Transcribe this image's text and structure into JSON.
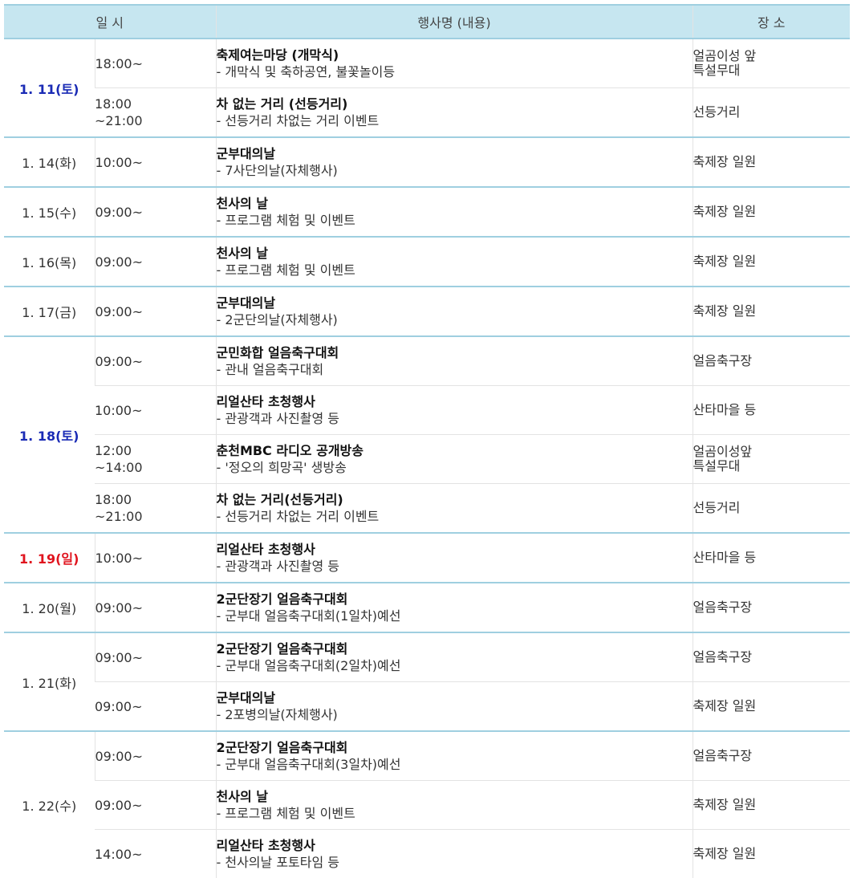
{
  "header": {
    "date_time": "일 시",
    "event": "행사명 (내용)",
    "place": "장 소"
  },
  "groups": [
    {
      "date": "1. 11(토)",
      "day_type": "sat",
      "items": [
        {
          "time": "18:00~",
          "title": "축제여는마당 (개막식)",
          "desc": "- 개막식 및 축하공연, 불꽃놀이등",
          "place": "얼곰이성 앞\n특설무대"
        },
        {
          "time": "18:00\n~21:00",
          "title": "차 없는 거리 (선등거리)",
          "desc": "- 선등거리 차없는 거리 이벤트",
          "place": "선등거리"
        }
      ]
    },
    {
      "date": "1. 14(화)",
      "day_type": "weekday",
      "items": [
        {
          "time": "10:00~",
          "title": "군부대의날",
          "desc": "- 7사단의날(자체행사)",
          "place": "축제장 일원"
        }
      ]
    },
    {
      "date": "1. 15(수)",
      "day_type": "weekday",
      "items": [
        {
          "time": "09:00~",
          "title": "천사의 날",
          "desc": "- 프로그램 체험 및 이벤트",
          "place": "축제장 일원"
        }
      ]
    },
    {
      "date": "1. 16(목)",
      "day_type": "weekday",
      "items": [
        {
          "time": "09:00~",
          "title": "천사의 날",
          "desc": "- 프로그램 체험 및 이벤트",
          "place": "축제장 일원"
        }
      ]
    },
    {
      "date": "1. 17(금)",
      "day_type": "weekday",
      "items": [
        {
          "time": "09:00~",
          "title": "군부대의날",
          "desc": "- 2군단의날(자체행사)",
          "place": "축제장 일원"
        }
      ]
    },
    {
      "date": "1. 18(토)",
      "day_type": "sat",
      "items": [
        {
          "time": "09:00~",
          "title": "군민화합 얼음축구대회",
          "desc": "- 관내 얼음축구대회",
          "place": "얼음축구장"
        },
        {
          "time": "10:00~",
          "title": "리얼산타 초청행사",
          "desc": "- 관광객과 사진촬영 등",
          "place": "산타마을 등"
        },
        {
          "time": "12:00\n~14:00",
          "title": "춘천MBC 라디오 공개방송",
          "desc": "- '정오의 희망곡' 생방송",
          "place": "얼곰이성앞\n특설무대"
        },
        {
          "time": "18:00\n~21:00",
          "title": "차 없는 거리(선등거리)",
          "desc": "- 선등거리 차없는 거리 이벤트",
          "place": "선등거리"
        }
      ]
    },
    {
      "date": "1. 19(일)",
      "day_type": "sun",
      "items": [
        {
          "time": "10:00~",
          "title": "리얼산타 초청행사",
          "desc": "- 관광객과 사진촬영 등",
          "place": "산타마을 등"
        }
      ]
    },
    {
      "date": "1. 20(월)",
      "day_type": "weekday",
      "items": [
        {
          "time": "09:00~",
          "title": "2군단장기 얼음축구대회",
          "desc": "- 군부대 얼음축구대회(1일차)예선",
          "place": "얼음축구장"
        }
      ]
    },
    {
      "date": "1. 21(화)",
      "day_type": "weekday",
      "items": [
        {
          "time": "09:00~",
          "title": "2군단장기 얼음축구대회",
          "desc": "- 군부대 얼음축구대회(2일차)예선",
          "place": "얼음축구장"
        },
        {
          "time": "09:00~",
          "title": "군부대의날",
          "desc": "- 2포병의날(자체행사)",
          "place": "축제장 일원"
        }
      ]
    },
    {
      "date": "1. 22(수)",
      "day_type": "weekday",
      "items": [
        {
          "time": "09:00~",
          "title": "2군단장기 얼음축구대회",
          "desc": "- 군부대 얼음축구대회(3일차)예선",
          "place": "얼음축구장"
        },
        {
          "time": "09:00~",
          "title": "천사의 날",
          "desc": "- 프로그램 체험 및 이벤트",
          "place": "축제장 일원"
        },
        {
          "time": "14:00~",
          "title": "리얼산타 초청행사",
          "desc": "- 천사의날 포토타임 등",
          "place": "축제장 일원"
        }
      ]
    }
  ]
}
